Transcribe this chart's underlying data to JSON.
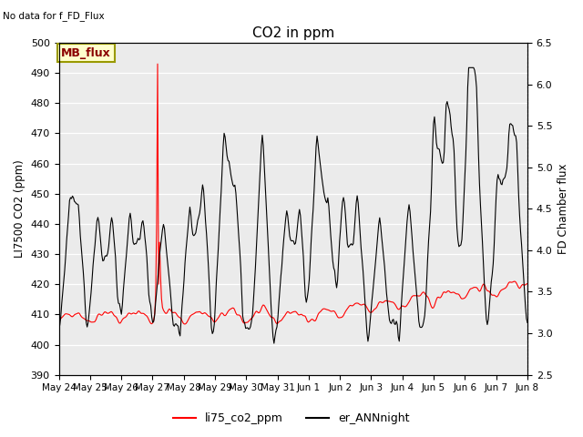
{
  "title": "CO2 in ppm",
  "top_left_text": "No data for f_FD_Flux",
  "ylabel_left": "LI7500 CO2 (ppm)",
  "ylabel_right": "FD Chamber flux",
  "ylim_left": [
    390,
    500
  ],
  "ylim_right": [
    2.5,
    6.5
  ],
  "yticks_left": [
    390,
    400,
    410,
    420,
    430,
    440,
    450,
    460,
    470,
    480,
    490,
    500
  ],
  "yticks_right": [
    2.5,
    3.0,
    3.5,
    4.0,
    4.5,
    5.0,
    5.5,
    6.0,
    6.5
  ],
  "xtick_labels": [
    "May 24",
    "May 25",
    "May 26",
    "May 27",
    "May 28",
    "May 29",
    "May 30",
    "May 31",
    "Jun 1",
    "Jun 2",
    "Jun 3",
    "Jun 4",
    "Jun 5",
    "Jun 6",
    "Jun 7",
    "Jun 8"
  ],
  "legend_entries": [
    "li75_co2_ppm",
    "er_ANNnight"
  ],
  "legend_colors": [
    "red",
    "black"
  ],
  "mb_flux_box": "MB_flux",
  "plot_bg_color": "#ebebeb",
  "red_color": "#ff0000",
  "black_color": "#000000",
  "figsize": [
    6.4,
    4.8
  ],
  "dpi": 100
}
